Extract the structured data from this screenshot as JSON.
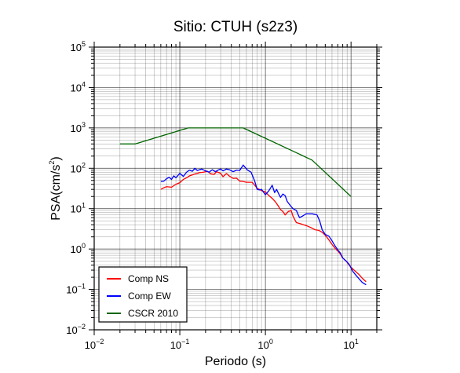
{
  "chart_data": {
    "type": "line",
    "title": "Sitio: CTUH (s2z3)",
    "xlabel": "Periodo (s)",
    "ylabel": "PSA(cm/s²)",
    "ylabel_base": "PSA(cm/s",
    "ylabel_sup": "2",
    "ylabel_close": ")",
    "xscale": "log",
    "yscale": "log",
    "xlim": [
      0.01,
      20
    ],
    "ylim": [
      0.01,
      100000
    ],
    "grid": true,
    "legend_position": "bottom-left",
    "x_tick_labels": [
      {
        "value": 0.01,
        "base": "10",
        "exp": "−2"
      },
      {
        "value": 0.1,
        "base": "10",
        "exp": "−1"
      },
      {
        "value": 1,
        "base": "10",
        "exp": "0"
      },
      {
        "value": 10,
        "base": "10",
        "exp": "1"
      }
    ],
    "y_tick_labels": [
      {
        "value": 0.01,
        "base": "10",
        "exp": "−2"
      },
      {
        "value": 0.1,
        "base": "10",
        "exp": "−1"
      },
      {
        "value": 1,
        "base": "10",
        "exp": "0"
      },
      {
        "value": 10,
        "base": "10",
        "exp": "1"
      },
      {
        "value": 100,
        "base": "10",
        "exp": "2"
      },
      {
        "value": 1000,
        "base": "10",
        "exp": "3"
      },
      {
        "value": 10000,
        "base": "10",
        "exp": "4"
      },
      {
        "value": 100000,
        "base": "10",
        "exp": "5"
      }
    ],
    "series": [
      {
        "name": "Comp NS",
        "color": "#ff0000",
        "points": [
          [
            0.06,
            30
          ],
          [
            0.065,
            33
          ],
          [
            0.07,
            35
          ],
          [
            0.08,
            34
          ],
          [
            0.09,
            40
          ],
          [
            0.1,
            44
          ],
          [
            0.11,
            53
          ],
          [
            0.12,
            58
          ],
          [
            0.13,
            65
          ],
          [
            0.15,
            72
          ],
          [
            0.17,
            78
          ],
          [
            0.19,
            80
          ],
          [
            0.21,
            84
          ],
          [
            0.23,
            73
          ],
          [
            0.25,
            70
          ],
          [
            0.27,
            82
          ],
          [
            0.3,
            75
          ],
          [
            0.32,
            62
          ],
          [
            0.35,
            74
          ],
          [
            0.38,
            64
          ],
          [
            0.42,
            56
          ],
          [
            0.46,
            57
          ],
          [
            0.5,
            48
          ],
          [
            0.55,
            47
          ],
          [
            0.6,
            45
          ],
          [
            0.7,
            45
          ],
          [
            0.75,
            38
          ],
          [
            0.8,
            32
          ],
          [
            0.9,
            28
          ],
          [
            1.0,
            26
          ],
          [
            1.1,
            21
          ],
          [
            1.2,
            18
          ],
          [
            1.3,
            15
          ],
          [
            1.4,
            12
          ],
          [
            1.5,
            9.5
          ],
          [
            1.6,
            8.5
          ],
          [
            1.7,
            7
          ],
          [
            1.85,
            8.5
          ],
          [
            2.0,
            9
          ],
          [
            2.1,
            6.5
          ],
          [
            2.3,
            4.5
          ],
          [
            2.6,
            4.2
          ],
          [
            3.0,
            3.8
          ],
          [
            3.4,
            3.4
          ],
          [
            3.8,
            3.0
          ],
          [
            4.2,
            2.9
          ],
          [
            4.6,
            2.6
          ],
          [
            5.0,
            2.2
          ],
          [
            5.5,
            1.7
          ],
          [
            6.0,
            1.3
          ],
          [
            6.5,
            1.05
          ],
          [
            7.0,
            0.9
          ],
          [
            7.5,
            0.75
          ],
          [
            8.0,
            0.6
          ],
          [
            8.8,
            0.5
          ],
          [
            9.5,
            0.4
          ],
          [
            10.5,
            0.32
          ],
          [
            11.5,
            0.27
          ],
          [
            12.5,
            0.23
          ],
          [
            13.5,
            0.19
          ],
          [
            15,
            0.155
          ]
        ]
      },
      {
        "name": "Comp EW",
        "color": "#0000ff",
        "points": [
          [
            0.06,
            47
          ],
          [
            0.065,
            48
          ],
          [
            0.07,
            55
          ],
          [
            0.075,
            60
          ],
          [
            0.08,
            53
          ],
          [
            0.085,
            65
          ],
          [
            0.09,
            58
          ],
          [
            0.1,
            75
          ],
          [
            0.11,
            63
          ],
          [
            0.12,
            80
          ],
          [
            0.13,
            90
          ],
          [
            0.14,
            84
          ],
          [
            0.15,
            100
          ],
          [
            0.16,
            88
          ],
          [
            0.17,
            92
          ],
          [
            0.18,
            96
          ],
          [
            0.2,
            86
          ],
          [
            0.22,
            80
          ],
          [
            0.24,
            92
          ],
          [
            0.26,
            82
          ],
          [
            0.28,
            90
          ],
          [
            0.3,
            96
          ],
          [
            0.32,
            86
          ],
          [
            0.35,
            96
          ],
          [
            0.38,
            92
          ],
          [
            0.42,
            82
          ],
          [
            0.46,
            90
          ],
          [
            0.5,
            88
          ],
          [
            0.55,
            120
          ],
          [
            0.58,
            105
          ],
          [
            0.62,
            90
          ],
          [
            0.68,
            80
          ],
          [
            0.75,
            48
          ],
          [
            0.8,
            30
          ],
          [
            0.85,
            29
          ],
          [
            0.9,
            30
          ],
          [
            1.0,
            22
          ],
          [
            1.1,
            28
          ],
          [
            1.2,
            38
          ],
          [
            1.28,
            25
          ],
          [
            1.35,
            30
          ],
          [
            1.42,
            24
          ],
          [
            1.5,
            19
          ],
          [
            1.6,
            23
          ],
          [
            1.7,
            21
          ],
          [
            1.8,
            15
          ],
          [
            1.95,
            12
          ],
          [
            2.1,
            10
          ],
          [
            2.3,
            9
          ],
          [
            2.5,
            6
          ],
          [
            2.7,
            6.5
          ],
          [
            3.0,
            7.5
          ],
          [
            3.5,
            7.5
          ],
          [
            4.0,
            7
          ],
          [
            4.3,
            5
          ],
          [
            4.6,
            3
          ],
          [
            5.0,
            2.3
          ],
          [
            5.5,
            2.1
          ],
          [
            6.0,
            1.6
          ],
          [
            6.5,
            1.2
          ],
          [
            7.0,
            0.95
          ],
          [
            7.5,
            0.8
          ],
          [
            8.0,
            0.6
          ],
          [
            8.8,
            0.5
          ],
          [
            9.5,
            0.42
          ],
          [
            10.5,
            0.28
          ],
          [
            11.5,
            0.22
          ],
          [
            12.5,
            0.18
          ],
          [
            13.5,
            0.15
          ],
          [
            15,
            0.13
          ]
        ]
      },
      {
        "name": "CSCR 2010",
        "color": "#006400",
        "points": [
          [
            0.02,
            400
          ],
          [
            0.03,
            400
          ],
          [
            0.125,
            1000
          ],
          [
            0.55,
            1000
          ],
          [
            3.5,
            160
          ],
          [
            10,
            20
          ]
        ]
      }
    ]
  }
}
